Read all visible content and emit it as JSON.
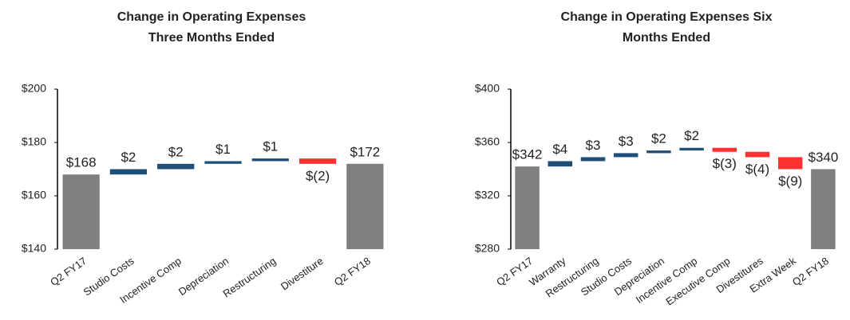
{
  "chart_data": [
    {
      "type": "waterfall",
      "title": [
        "Change in Operating Expenses",
        "Three Months Ended"
      ],
      "categories": [
        "Q2 FY17",
        "Studio Costs",
        "Incentive Comp",
        "Depreciation",
        "Restructuring",
        "Divestiture",
        "Q2 FY18"
      ],
      "values": [
        168,
        2,
        2,
        1,
        1,
        -2,
        172
      ],
      "value_labels": [
        "$168",
        "$2",
        "$2",
        "$1",
        "$1",
        "$(2)",
        "$172"
      ],
      "ylim": [
        140,
        200
      ],
      "yticks": [
        {
          "value": 140,
          "label": "$140"
        },
        {
          "value": 160,
          "label": "$160"
        },
        {
          "value": 180,
          "label": "$180"
        },
        {
          "value": 200,
          "label": "$200"
        }
      ],
      "total_color": "#7f7f7f",
      "increase_color": "#1f4e79",
      "decrease_color": "#ff3030"
    },
    {
      "type": "waterfall",
      "title": [
        "Change in Operating Expenses Six",
        "Months Ended"
      ],
      "categories": [
        "Q2 FY17",
        "Warranty",
        "Restructuring",
        "Studio Costs",
        "Depreciation",
        "Incentive Comp",
        "Executive Comp",
        "Divestitures",
        "Extra Week",
        "Q2 FY18"
      ],
      "values": [
        342,
        4,
        3,
        3,
        2,
        2,
        -3,
        -4,
        -9,
        340
      ],
      "value_labels": [
        "$342",
        "$4",
        "$3",
        "$3",
        "$2",
        "$2",
        "$(3)",
        "$(4)",
        "$(9)",
        "$340"
      ],
      "ylim": [
        280,
        400
      ],
      "yticks": [
        {
          "value": 280,
          "label": "$280"
        },
        {
          "value": 320,
          "label": "$320"
        },
        {
          "value": 360,
          "label": "$360"
        },
        {
          "value": 400,
          "label": "$400"
        }
      ],
      "total_color": "#7f7f7f",
      "increase_color": "#1f4e79",
      "decrease_color": "#ff3030"
    }
  ]
}
